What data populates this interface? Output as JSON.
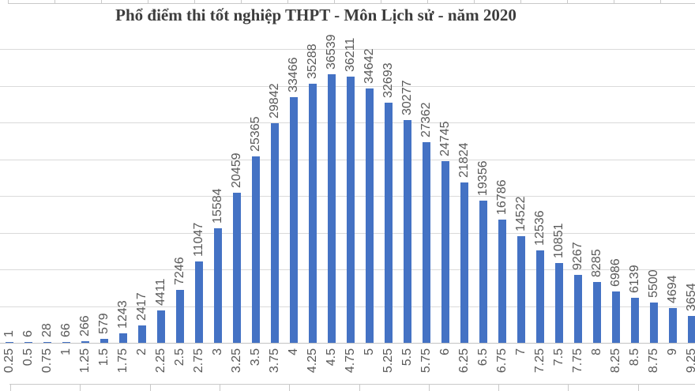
{
  "chart_data": {
    "type": "bar",
    "title": "Phổ điểm thi tốt nghiệp THPT - Môn Lịch sử - năm 2020",
    "xlabel": "",
    "ylabel": "",
    "categories": [
      "0.25",
      "0.5",
      "0.75",
      "1",
      "1.25",
      "1.5",
      "1.75",
      "2",
      "2.25",
      "2.5",
      "2.75",
      "3",
      "3.25",
      "3.5",
      "3.75",
      "4",
      "4.25",
      "4.5",
      "4.75",
      "5",
      "5.25",
      "5.5",
      "5.75",
      "6",
      "6.25",
      "6.5",
      "6.75",
      "7",
      "7.25",
      "7.5",
      "7.75",
      "8",
      "8.25",
      "8.5",
      "8.75",
      "9",
      "9.25"
    ],
    "values": [
      1,
      6,
      28,
      66,
      266,
      579,
      1243,
      2417,
      4411,
      7246,
      11047,
      15584,
      20459,
      25365,
      29842,
      33466,
      35288,
      36539,
      36211,
      34642,
      32693,
      30277,
      27362,
      24745,
      21824,
      19356,
      16786,
      14522,
      12536,
      10851,
      9267,
      8285,
      6986,
      6139,
      5500,
      4694,
      3654
    ],
    "ylim": [
      0,
      40000
    ],
    "gridline_step": 5000,
    "grid": true,
    "legend": "none",
    "data_labels_rotation": -90,
    "x_tick_rotation": -90,
    "bar_color": "#4472C4",
    "gridline_color": "#DADADA",
    "axis_color": "#C3C3C3",
    "label_color": "#595959",
    "title_color": "#3D3D3D",
    "notes": "right edge of chart cropped after category 9.25; no y-axis tick labels visible"
  }
}
